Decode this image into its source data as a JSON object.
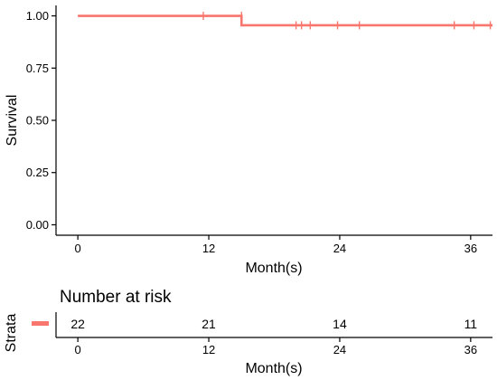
{
  "chart_data": {
    "type": "line",
    "title": "",
    "ylabel": "Survival",
    "xlabel": "Month(s)",
    "xlim": [
      -2,
      38
    ],
    "ylim": [
      -0.05,
      1.05
    ],
    "x_ticks": [
      "0",
      "12",
      "24",
      "36"
    ],
    "y_ticks": [
      "0.00",
      "0.25",
      "0.50",
      "0.75",
      "1.00"
    ],
    "grid": false,
    "series": [
      {
        "color": "#F8766D",
        "steps": [
          {
            "x": 0,
            "y": 1.0
          },
          {
            "x": 15,
            "y": 1.0
          },
          {
            "x": 15,
            "y": 0.955
          },
          {
            "x": 38,
            "y": 0.955
          }
        ],
        "censor_marks": [
          {
            "x": 11.5,
            "y": 1.0
          },
          {
            "x": 15,
            "y": 1.0
          },
          {
            "x": 20,
            "y": 0.955
          },
          {
            "x": 20.5,
            "y": 0.955
          },
          {
            "x": 21.3,
            "y": 0.955
          },
          {
            "x": 23.8,
            "y": 0.955
          },
          {
            "x": 25.8,
            "y": 0.955
          },
          {
            "x": 34.5,
            "y": 0.955
          },
          {
            "x": 36.3,
            "y": 0.955
          },
          {
            "x": 37.8,
            "y": 0.955
          }
        ]
      }
    ]
  },
  "risk_table": {
    "title": "Number at risk",
    "strata_label": "Strata",
    "strata_color": "#F8766D",
    "x_ticks": [
      "0",
      "12",
      "24",
      "36"
    ],
    "xlabel": "Month(s)",
    "values": [
      {
        "x": 0,
        "n": "22"
      },
      {
        "x": 12,
        "n": "21"
      },
      {
        "x": 24,
        "n": "14"
      },
      {
        "x": 36,
        "n": "11"
      }
    ]
  }
}
